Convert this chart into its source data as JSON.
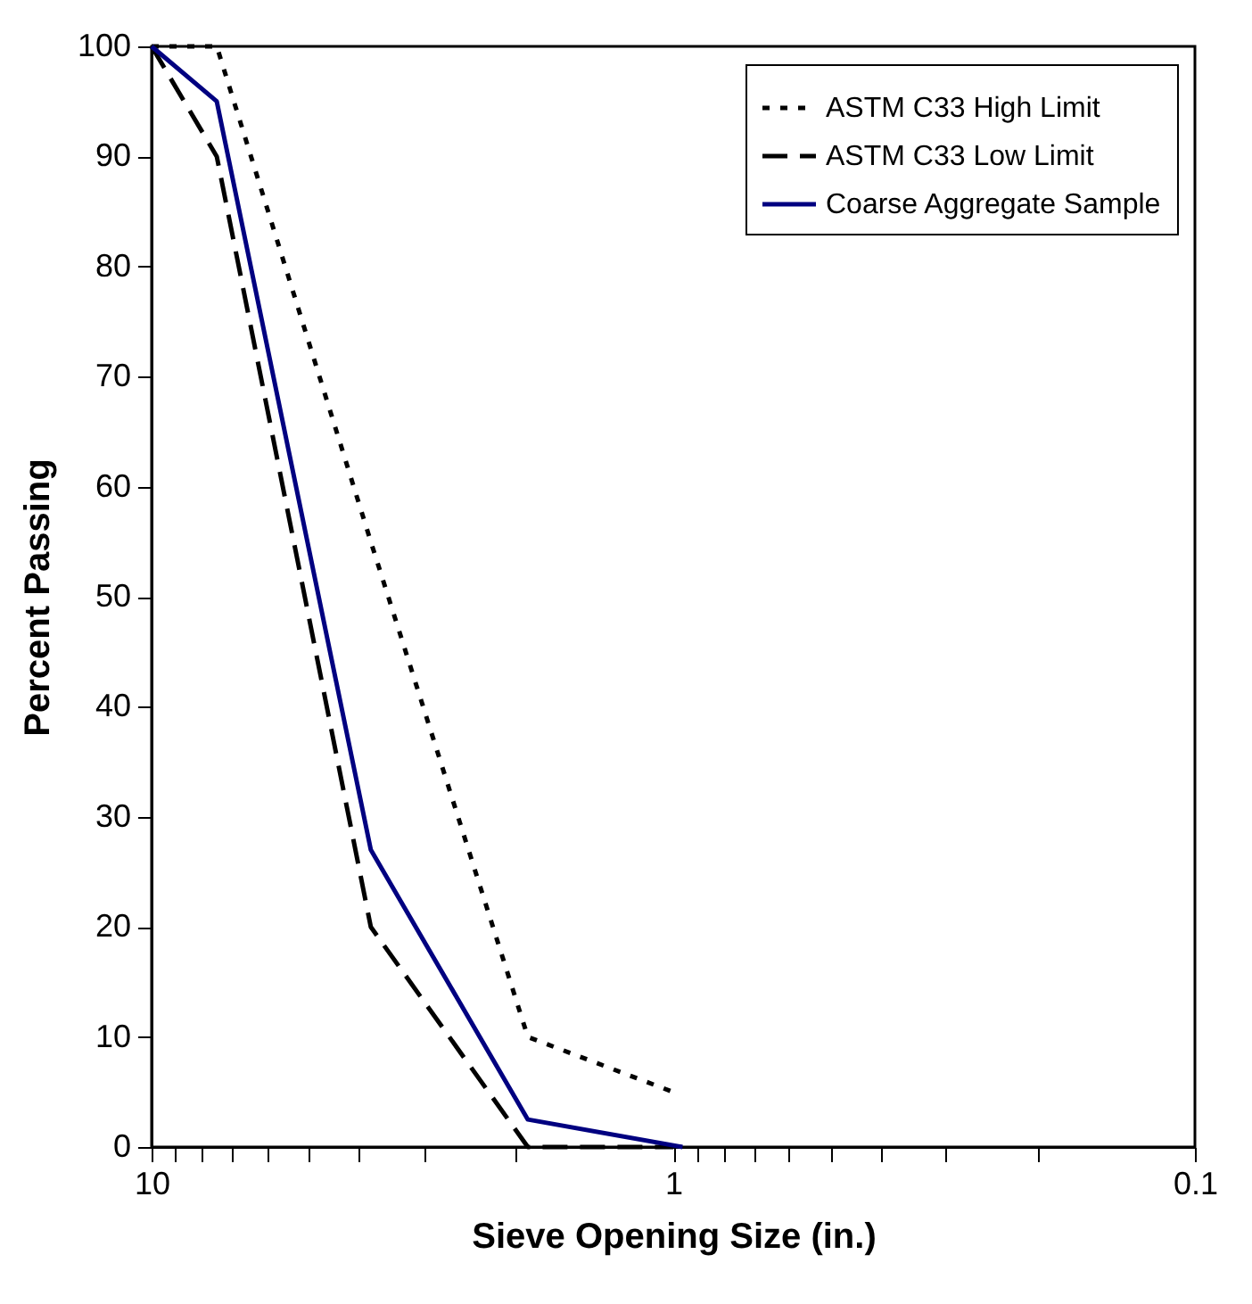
{
  "chart_data": {
    "type": "line",
    "xlabel": "Sieve Opening Size (in.)",
    "ylabel": "Percent Passing",
    "log": "x",
    "xlim": [
      10,
      0.1
    ],
    "xticks": [
      10,
      {
        "value": 9,
        "label": null
      },
      {
        "value": 8,
        "label": null
      },
      {
        "value": 7,
        "label": null
      },
      {
        "value": 6,
        "label": null
      },
      {
        "value": 5,
        "label": null
      },
      {
        "value": 4,
        "label": null
      },
      {
        "value": 3,
        "label": null
      },
      {
        "value": 2,
        "label": null
      },
      1,
      {
        "value": 0.9,
        "label": null
      },
      {
        "value": 0.8,
        "label": null
      },
      {
        "value": 0.7,
        "label": null
      },
      {
        "value": 0.6,
        "label": null
      },
      {
        "value": 0.5,
        "label": null
      },
      {
        "value": 0.4,
        "label": null
      },
      {
        "value": 0.3,
        "label": null
      },
      {
        "value": 0.2,
        "label": null
      },
      0.1
    ],
    "ylim": [
      0,
      100
    ],
    "yticks": [
      0,
      10,
      20,
      30,
      40,
      50,
      60,
      70,
      80,
      90,
      100
    ],
    "grid": false,
    "legend": "top right",
    "marker": "none",
    "series": [
      {
        "name": "ASTM C33 High Limit",
        "color": "#000000",
        "line_style": "dotted",
        "x": [
          10,
          7.5,
          3.8,
          1.9,
          1.0
        ],
        "values": [
          100,
          100,
          55,
          10,
          5
        ]
      },
      {
        "name": "ASTM C33 Low Limit",
        "color": "#000000",
        "line_style": "dashed",
        "x": [
          10,
          7.5,
          3.8,
          1.9,
          1.0
        ],
        "values": [
          100,
          90,
          20,
          0,
          0
        ]
      },
      {
        "name": "Coarse Aggregate Sample",
        "color": "#000080",
        "line_style": "solid",
        "x": [
          10,
          7.5,
          3.8,
          1.9,
          0.96
        ],
        "values": [
          100,
          95,
          27,
          2.5,
          0
        ]
      }
    ]
  }
}
